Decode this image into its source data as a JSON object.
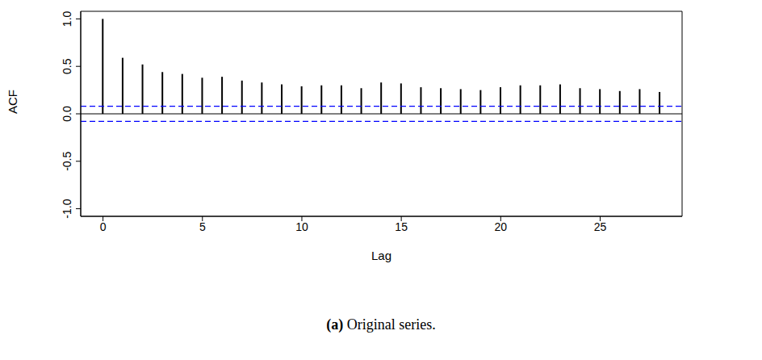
{
  "chart_data": {
    "type": "bar",
    "x_label": "Lag",
    "y_label": "ACF",
    "caption": "(a) Original series.",
    "x": [
      0,
      1,
      2,
      3,
      4,
      5,
      6,
      7,
      8,
      9,
      10,
      11,
      12,
      13,
      14,
      15,
      16,
      17,
      18,
      19,
      20,
      21,
      22,
      23,
      24,
      25,
      26,
      27,
      28
    ],
    "values": [
      1.0,
      0.59,
      0.52,
      0.44,
      0.42,
      0.38,
      0.39,
      0.35,
      0.33,
      0.31,
      0.29,
      0.3,
      0.3,
      0.27,
      0.33,
      0.32,
      0.28,
      0.27,
      0.26,
      0.25,
      0.28,
      0.3,
      0.3,
      0.31,
      0.27,
      0.26,
      0.24,
      0.26,
      0.23
    ],
    "color": "#000000",
    "xlim": [
      -1.12,
      29.12
    ],
    "xticks": [
      0,
      5,
      10,
      15,
      20,
      25
    ],
    "ylim": [
      -1.08,
      1.08
    ],
    "yticks": [
      {
        "value": -1,
        "label": "-1.0"
      },
      {
        "value": -0.5,
        "label": "-0.5"
      },
      {
        "value": 0,
        "label": "0.0"
      },
      {
        "value": 0.5,
        "label": "0.5"
      },
      {
        "value": 1,
        "label": "1.0"
      }
    ],
    "reference_lines": [
      {
        "value": 0.08,
        "color": "#0000ff",
        "line_style": "dashed"
      },
      {
        "value": -0.08,
        "color": "#0000ff",
        "line_style": "dashed"
      }
    ]
  }
}
